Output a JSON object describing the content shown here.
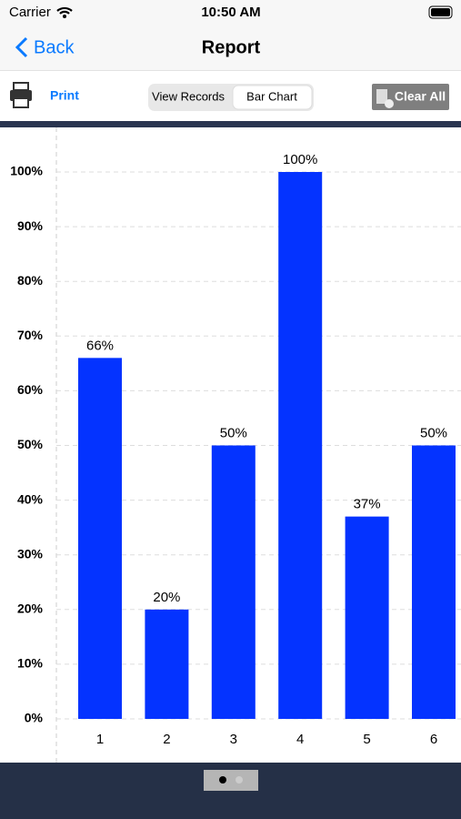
{
  "status_bar": {
    "carrier": "Carrier",
    "time": "10:50 AM"
  },
  "nav_bar": {
    "back": "Back",
    "title": "Report"
  },
  "toolbar": {
    "print": "Print",
    "segments": [
      "View Records",
      "Bar Chart"
    ],
    "clear": "Clear All"
  },
  "chart_data": {
    "type": "bar",
    "categories": [
      "1",
      "2",
      "3",
      "4",
      "5",
      "6"
    ],
    "values": [
      66,
      20,
      50,
      100,
      37,
      50
    ],
    "value_labels": [
      "66%",
      "20%",
      "50%",
      "100%",
      "37%",
      "50%"
    ],
    "color": "#0433ff",
    "ylim": [
      0,
      100
    ],
    "yticks": [
      {
        "value": 0,
        "label": "0%"
      },
      {
        "value": 10,
        "label": "10%"
      },
      {
        "value": 20,
        "label": "20%"
      },
      {
        "value": 30,
        "label": "30%"
      },
      {
        "value": 40,
        "label": "40%"
      },
      {
        "value": 50,
        "label": "50%"
      },
      {
        "value": 60,
        "label": "60%"
      },
      {
        "value": 70,
        "label": "70%"
      },
      {
        "value": 80,
        "label": "80%"
      },
      {
        "value": 90,
        "label": "90%"
      },
      {
        "value": 100,
        "label": "100%"
      }
    ],
    "grid": true
  }
}
